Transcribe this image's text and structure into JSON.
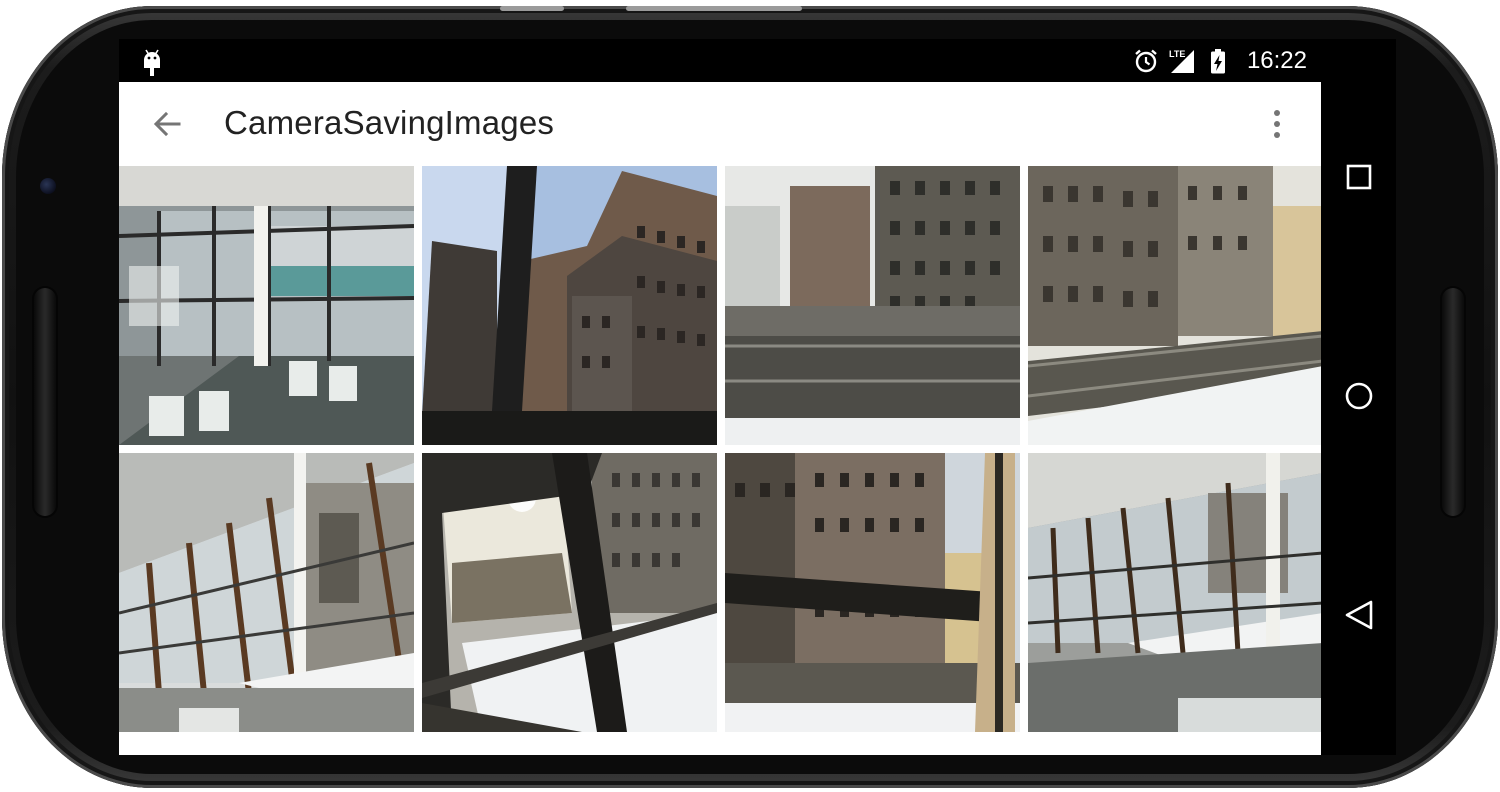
{
  "status_bar": {
    "time": "16:22",
    "network_label": "LTE",
    "icons": [
      "android-debug-icon",
      "alarm-icon",
      "lte-signal-icon",
      "battery-charging-icon"
    ]
  },
  "toolbar": {
    "title": "CameraSavingImages",
    "back_icon": "arrow-left-icon",
    "overflow_icon": "more-vert-icon"
  },
  "gallery": {
    "photos": [
      {
        "subject": "office interior with windows"
      },
      {
        "subject": "brick building through window"
      },
      {
        "subject": "rooftop with buildings"
      },
      {
        "subject": "snowy rooftop with fire escapes"
      },
      {
        "subject": "angled glass window wall"
      },
      {
        "subject": "sunlit window and snow"
      },
      {
        "subject": "buildings and window frame"
      },
      {
        "subject": "window wall with snow"
      }
    ]
  },
  "nav_bar": {
    "icons": [
      "recents-icon",
      "home-icon",
      "back-triangle-icon"
    ]
  },
  "colors": {
    "status_bar": "#000000",
    "toolbar": "#ffffff",
    "title_text": "#222222",
    "icon_grey": "#757575"
  }
}
